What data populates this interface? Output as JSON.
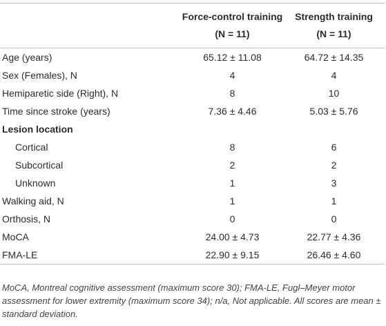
{
  "table": {
    "columns": [
      {
        "title": "Force-control training",
        "n": "(N = 11)"
      },
      {
        "title": "Strength training",
        "n": "(N = 11)"
      }
    ],
    "rows": [
      {
        "label": "Age (years)",
        "values": [
          "65.12 ± 11.08",
          "64.72 ± 14.35"
        ]
      },
      {
        "label": "Sex (Females), N",
        "values": [
          "4",
          "4"
        ]
      },
      {
        "label": "Hemiparetic side (Right), N",
        "values": [
          "8",
          "10"
        ]
      },
      {
        "label": "Time since stroke (years)",
        "values": [
          "7.36 ± 4.46",
          "5.03 ± 5.76"
        ]
      },
      {
        "label": "Lesion location",
        "subrows": [
          {
            "label": "Cortical",
            "values": [
              "8",
              "6"
            ]
          },
          {
            "label": "Subcortical",
            "values": [
              "2",
              "2"
            ]
          },
          {
            "label": "Unknown",
            "values": [
              "1",
              "3"
            ]
          }
        ]
      },
      {
        "label": "Walking aid, N",
        "values": [
          "1",
          "1"
        ]
      },
      {
        "label": "Orthosis, N",
        "values": [
          "0",
          "0"
        ]
      },
      {
        "label": "MoCA",
        "values": [
          "24.00 ± 4.73",
          "22.77 ± 4.36"
        ]
      },
      {
        "label": "FMA-LE",
        "values": [
          "22.90 ± 9.15",
          "26.46 ± 4.60"
        ]
      }
    ],
    "footnote": "MoCA, Montreal cognitive assessment (maximum score 30); FMA-LE, Fugl–Meyer motor assessment for lower extremity (maximum score 34); n/a, Not applicable. All scores are mean ± standard deviation."
  }
}
